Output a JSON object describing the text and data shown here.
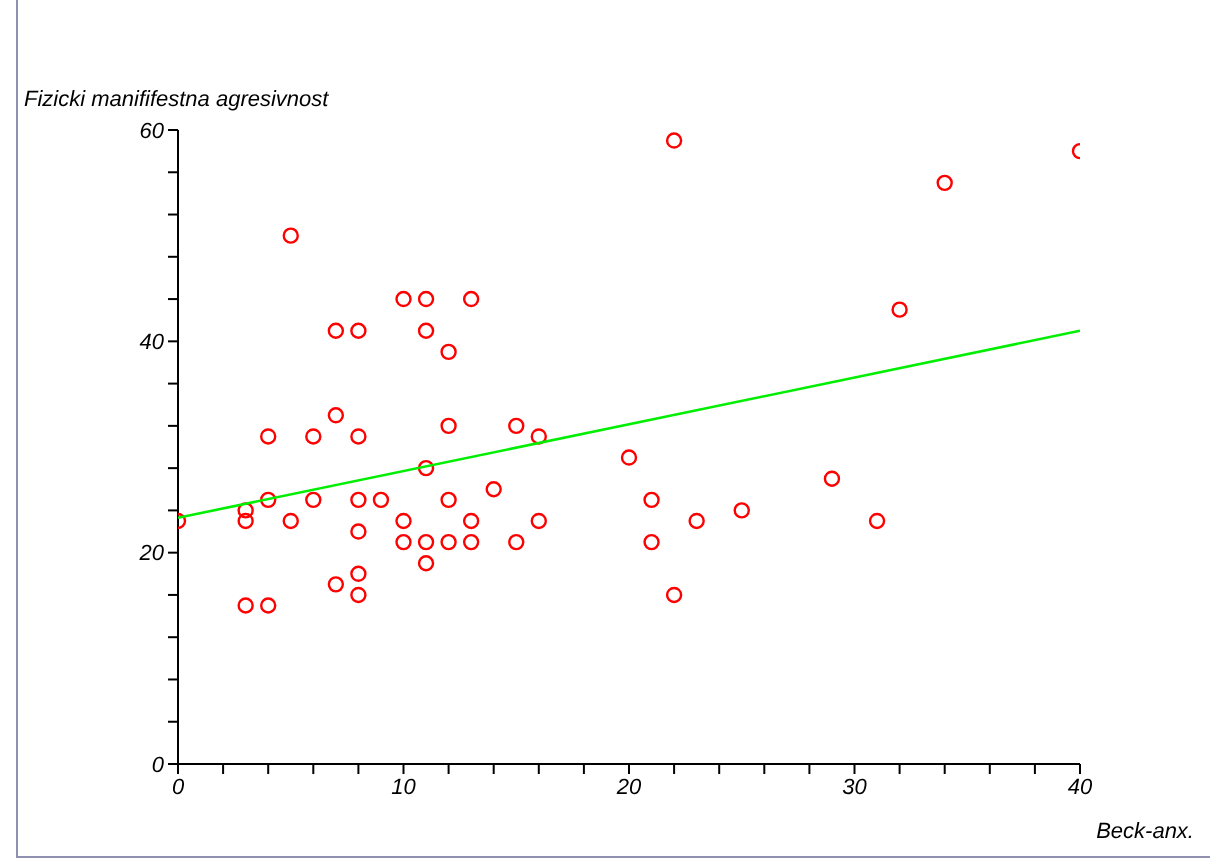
{
  "chart_data": {
    "type": "scatter",
    "xlabel": "Beck-anx.",
    "ylabel": "Fizicki manififestna agresivnost",
    "xlim": [
      0,
      40
    ],
    "ylim": [
      0,
      60
    ],
    "xticks": [
      0,
      {
        "value": 2,
        "label": null
      },
      {
        "value": 4,
        "label": null
      },
      {
        "value": 6,
        "label": null
      },
      {
        "value": 8,
        "label": null
      },
      10,
      {
        "value": 12,
        "label": null
      },
      {
        "value": 14,
        "label": null
      },
      {
        "value": 16,
        "label": null
      },
      {
        "value": 18,
        "label": null
      },
      20,
      {
        "value": 22,
        "label": null
      },
      {
        "value": 24,
        "label": null
      },
      {
        "value": 26,
        "label": null
      },
      {
        "value": 28,
        "label": null
      },
      30,
      {
        "value": 32,
        "label": null
      },
      {
        "value": 34,
        "label": null
      },
      {
        "value": 36,
        "label": null
      },
      {
        "value": 38,
        "label": null
      },
      40
    ],
    "yticks": [
      0,
      {
        "value": 4,
        "label": null
      },
      {
        "value": 8,
        "label": null
      },
      {
        "value": 12,
        "label": null
      },
      {
        "value": 16,
        "label": null
      },
      20,
      {
        "value": 24,
        "label": null
      },
      {
        "value": 28,
        "label": null
      },
      {
        "value": 32,
        "label": null
      },
      {
        "value": 36,
        "label": null
      },
      40,
      {
        "value": 44,
        "label": null
      },
      {
        "value": 48,
        "label": null
      },
      {
        "value": 52,
        "label": null
      },
      {
        "value": 56,
        "label": null
      },
      60
    ],
    "grid": false,
    "legend": false,
    "marker": "circle",
    "series": [
      {
        "type": "scatter",
        "color": "#ff0000",
        "x": [
          0,
          3,
          3,
          3,
          4,
          4,
          4,
          5,
          5,
          6,
          6,
          7,
          7,
          7,
          8,
          8,
          8,
          8,
          8,
          8,
          9,
          10,
          10,
          10,
          11,
          11,
          11,
          11,
          11,
          12,
          12,
          12,
          12,
          13,
          13,
          13,
          14,
          15,
          15,
          16,
          16,
          20,
          21,
          21,
          22,
          22,
          23,
          25,
          29,
          31,
          32,
          34,
          40
        ],
        "values": [
          23,
          24,
          23,
          15,
          31,
          25,
          15,
          50,
          23,
          31,
          25,
          41,
          33,
          17,
          41,
          31,
          25,
          22,
          18,
          16,
          25,
          44,
          23,
          21,
          44,
          41,
          28,
          21,
          19,
          39,
          32,
          25,
          21,
          44,
          23,
          21,
          26,
          32,
          21,
          31,
          23,
          29,
          25,
          21,
          59,
          16,
          23,
          24,
          27,
          23,
          43,
          55,
          58
        ]
      },
      {
        "type": "line",
        "color": "#00ee00",
        "marker": "none",
        "x": [
          0,
          40
        ],
        "values": [
          23.3,
          41
        ]
      }
    ]
  }
}
